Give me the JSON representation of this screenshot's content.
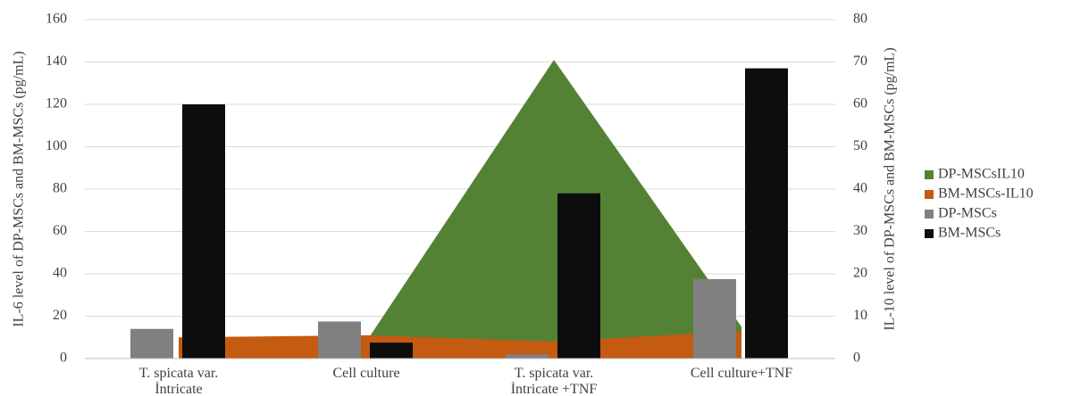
{
  "chart_data": {
    "type": "bar",
    "categories": [
      "T. spicata var. İntricate",
      "Cell culture",
      "T. spicata var. İntricate +TNF",
      "Cell culture+TNF"
    ],
    "ylabel": "IL-6 level of DP-MSCs and BM-MSCs (pg/mL)",
    "y2label": "IL-10 level of DP-MSCs and BM-MSCs (pg/mL)",
    "ylim": [
      0,
      160
    ],
    "yticks": [
      0,
      20,
      40,
      60,
      80,
      100,
      120,
      140,
      160
    ],
    "y2lim": [
      0,
      80
    ],
    "y2ticks": [
      0,
      10,
      20,
      30,
      40,
      50,
      60,
      70,
      80
    ],
    "grid": true,
    "legend": "right",
    "series": [
      {
        "name": "DP-MSCsIL10",
        "type": "area",
        "axis": "y2",
        "color": "#548235",
        "values": [
          0,
          4,
          70.5,
          7.5
        ]
      },
      {
        "name": "BM-MSCs-IL10",
        "type": "area",
        "axis": "y2",
        "color": "#c55a11",
        "values": [
          5,
          5.5,
          4,
          6.5
        ]
      },
      {
        "name": "DP-MSCs",
        "type": "bar",
        "color": "#808080",
        "values": [
          14,
          17.5,
          2,
          37.5
        ]
      },
      {
        "name": "BM-MSCs",
        "type": "bar",
        "color": "#0d0d0d",
        "values": [
          120,
          7.5,
          78,
          137
        ]
      }
    ]
  }
}
